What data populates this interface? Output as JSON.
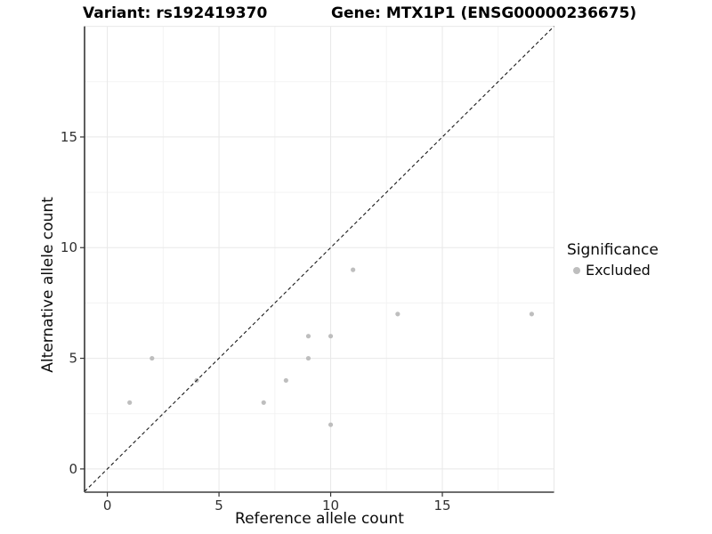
{
  "header": {
    "variant_title": "Variant: rs192419370",
    "gene_title": "Gene: MTX1P1 (ENSG00000236675)"
  },
  "chart_data": {
    "type": "scatter",
    "title": "Variant: rs192419370 / Gene: MTX1P1 (ENSG00000236675)",
    "xlabel": "Reference allele count",
    "ylabel": "Alternative allele count",
    "xlim": [
      -1.02,
      20
    ],
    "ylim": [
      -1.05,
      20
    ],
    "x_ticks": [
      0,
      5,
      10,
      15
    ],
    "y_ticks": [
      0,
      5,
      10,
      15
    ],
    "major_gridlines": [
      0,
      5,
      10,
      15,
      20
    ],
    "minor_gridlines": [
      2.5,
      7.5,
      12.5,
      17.5
    ],
    "grid_on": true,
    "points": [
      {
        "x": 1,
        "y": 3,
        "series": "Excluded"
      },
      {
        "x": 2,
        "y": 5,
        "series": "Excluded"
      },
      {
        "x": 4,
        "y": 4,
        "series": "Excluded"
      },
      {
        "x": 7,
        "y": 3,
        "series": "Excluded"
      },
      {
        "x": 8,
        "y": 4,
        "series": "Excluded"
      },
      {
        "x": 9,
        "y": 5,
        "series": "Excluded"
      },
      {
        "x": 9,
        "y": 6,
        "series": "Excluded"
      },
      {
        "x": 10,
        "y": 2,
        "series": "Excluded"
      },
      {
        "x": 10,
        "y": 6,
        "series": "Excluded"
      },
      {
        "x": 11,
        "y": 9,
        "series": "Excluded"
      },
      {
        "x": 13,
        "y": 7,
        "series": "Excluded"
      },
      {
        "x": 19,
        "y": 7,
        "series": "Excluded"
      }
    ],
    "identity_line": {
      "type": "y=x",
      "style": "dashed",
      "color": "#1a1a1a"
    },
    "colors": {
      "point": "#bebebe",
      "grid_major": "#e8e8e8",
      "grid_minor": "#f3f3f3",
      "axis_line_y": "#1a1a1a",
      "axis_line_x": "#6e6e6e",
      "tick": "#333333",
      "tick_label": "#303030"
    },
    "legend": {
      "position": "right",
      "title": "Significance",
      "items": [
        {
          "label": "Excluded",
          "color": "#bebebe"
        }
      ]
    }
  }
}
